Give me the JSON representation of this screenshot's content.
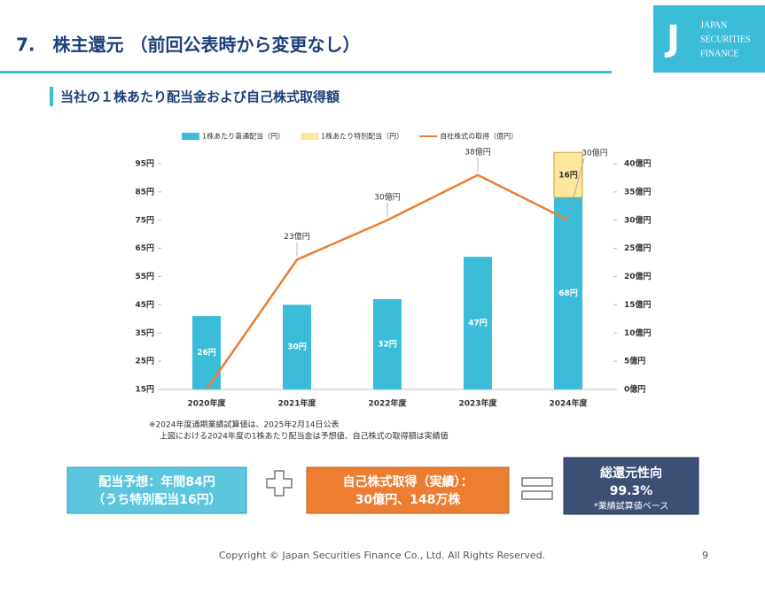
{
  "header": {
    "title": "7.　株主還元 （前回公表時から変更なし）",
    "logo": [
      "JAPAN",
      "SECURITIES",
      "FINANCE"
    ]
  },
  "chart_data": {
    "type": "bar",
    "title": "当社の１株あたり配当金および自己株式取得額",
    "categories": [
      "2020年度",
      "2021年度",
      "2022年度",
      "2023年度",
      "2024年度"
    ],
    "series": [
      {
        "name": "1株あたり普通配当（円）",
        "color": "#3bbcd8",
        "values": [
          26,
          30,
          32,
          47,
          68
        ],
        "value_labels": [
          "26円",
          "30円",
          "32円",
          "47円",
          "68円"
        ]
      },
      {
        "name": "1株あたり特別配当（円）",
        "color": "#fce79c",
        "values": [
          null,
          null,
          null,
          null,
          16
        ],
        "value_labels": [
          null,
          null,
          null,
          null,
          "16円"
        ]
      },
      {
        "name": "自社株式の取得（億円）",
        "type": "line",
        "axis": "y2",
        "color": "#ed7d31",
        "values": [
          0,
          23,
          30,
          38,
          30
        ],
        "value_labels": [
          null,
          "23億円",
          "30億円",
          "38億円",
          "30億円"
        ]
      }
    ],
    "ylim": [
      15,
      95
    ],
    "yticks": [
      {
        "value": 15,
        "label": "15円"
      },
      {
        "value": 25,
        "label": "25円"
      },
      {
        "value": 35,
        "label": "35円"
      },
      {
        "value": 45,
        "label": "45円"
      },
      {
        "value": 55,
        "label": "55円"
      },
      {
        "value": 65,
        "label": "65円"
      },
      {
        "value": 75,
        "label": "75円"
      },
      {
        "value": 85,
        "label": "85円"
      },
      {
        "value": 95,
        "label": "95円"
      }
    ],
    "y2lim": [
      0,
      40
    ],
    "y2ticks": [
      {
        "value": 0,
        "label": "0億円"
      },
      {
        "value": 5,
        "label": "5億円"
      },
      {
        "value": 10,
        "label": "10億円"
      },
      {
        "value": 15,
        "label": "15億円"
      },
      {
        "value": 20,
        "label": "20億円"
      },
      {
        "value": 25,
        "label": "25億円"
      },
      {
        "value": 30,
        "label": "30億円"
      },
      {
        "value": 35,
        "label": "35億円"
      },
      {
        "value": 40,
        "label": "40億円"
      }
    ],
    "notes": [
      "※2024年度通期業績試算値は、2025年2月14日公表",
      "上図における2024年度の1株あたり配当金は予想値、自己株式の取得額は実績値"
    ]
  },
  "boxes": {
    "dividend": [
      "配当予想：年間84円",
      "（うち特別配当16円）"
    ],
    "buyback": [
      "自己株式取得（実績）：",
      "30億円、148万株"
    ],
    "payout": [
      "総還元性向",
      "99.3%",
      "*業績試算値ベース"
    ]
  },
  "footer": {
    "copyright": "Copyright © Japan Securities Finance Co., Ltd. All Rights Reserved.",
    "page": "9"
  }
}
